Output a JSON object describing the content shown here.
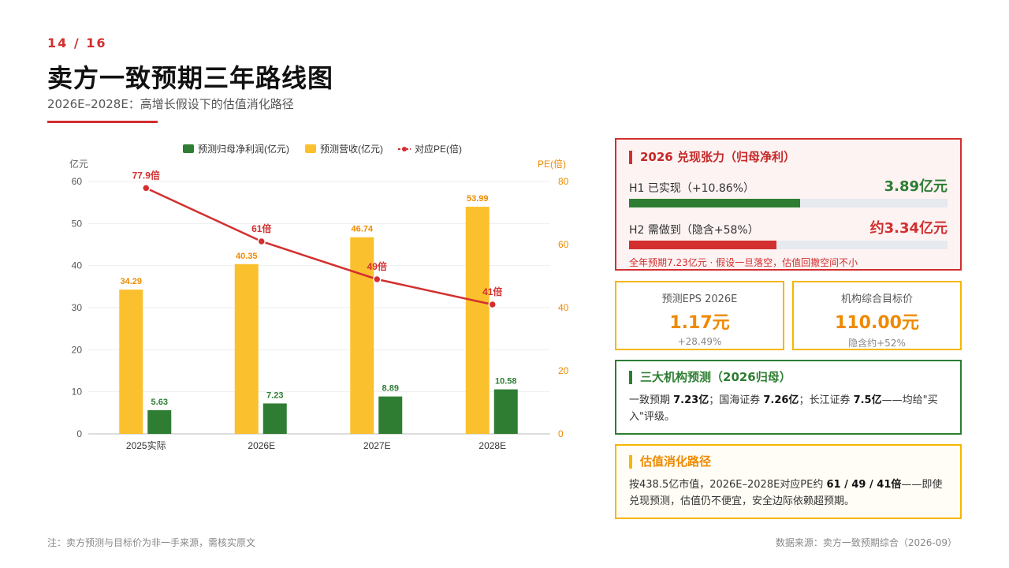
{
  "header": {
    "page_num": "14 / 16",
    "title": "卖方一致预期三年路线图",
    "subtitle": "2026E–2028E：高增长假设下的估值消化路径"
  },
  "chart_data": {
    "type": "bar",
    "categories": [
      "2025实际",
      "2026E",
      "2027E",
      "2028E"
    ],
    "series": [
      {
        "name": "预测归母净利润(亿元)",
        "kind": "bar",
        "axis": "left",
        "color": "#2e7d32",
        "values": [
          5.63,
          7.23,
          8.89,
          10.58
        ],
        "labels": [
          "5.63",
          "7.23",
          "8.89",
          "10.58"
        ]
      },
      {
        "name": "预测营收(亿元)",
        "kind": "bar",
        "axis": "left",
        "color": "#fbc02d",
        "values": [
          34.29,
          40.35,
          46.74,
          53.99
        ],
        "labels": [
          "34.29",
          "40.35",
          "46.74",
          "53.99"
        ]
      },
      {
        "name": "对应PE(倍)",
        "kind": "line",
        "axis": "right",
        "color": "#d32f2f",
        "values": [
          77.9,
          61,
          49,
          41
        ],
        "labels": [
          "77.9倍",
          "61倍",
          "49倍",
          "41倍"
        ]
      }
    ],
    "ylabel": "亿元",
    "y2label": "PE(倍)",
    "ylim": [
      0,
      60
    ],
    "y2lim": [
      0,
      80
    ],
    "yticks": [
      "0",
      "10",
      "20",
      "30",
      "40",
      "50",
      "60"
    ],
    "y2ticks": [
      "0",
      "20",
      "40",
      "60",
      "80"
    ],
    "legend_position": "top",
    "grid": true
  },
  "panel_tension": {
    "title": "2026 兑现张力（归母净利）",
    "h1_label": "H1 已实现（+10.86%）",
    "h1_value": "3.89亿元",
    "h1_progress": 0.538,
    "h2_label": "H2 需做到（隐含+58%）",
    "h2_value": "约3.34亿元",
    "h2_progress": 0.462,
    "note": "全年预期7.23亿元 · 假设一旦落空，估值回撤空间不小",
    "colors": {
      "h1": "#2e7d32",
      "h2": "#d32f2f"
    }
  },
  "metric_eps": {
    "label": "预测EPS 2026E",
    "value": "1.17元",
    "sub": "+28.49%"
  },
  "metric_target": {
    "label": "机构综合目标价",
    "value": "110.00元",
    "sub": "隐含约+52%"
  },
  "institutions": {
    "title": "三大机构预测（2026归母）",
    "t1": "一致预期 ",
    "b1": "7.23亿",
    "t2": "；国海证券 ",
    "b2": "7.26亿",
    "t3": "；长江证券 ",
    "b3": "7.5亿",
    "t4": "——均给\"买入\"评级。"
  },
  "valuation": {
    "title": "估值消化路径",
    "t1": "按438.5亿市值，2026E–2028E对应PE约 ",
    "b1": "61 / 49 / 41倍",
    "t2": "——即使兑现预测，估值仍不便宜，安全边际依赖超预期。"
  },
  "footer": {
    "note": "注：卖方预测与目标价为非一手来源，需核实原文",
    "source": "数据来源：卖方一致预期综合（2026-09）"
  }
}
